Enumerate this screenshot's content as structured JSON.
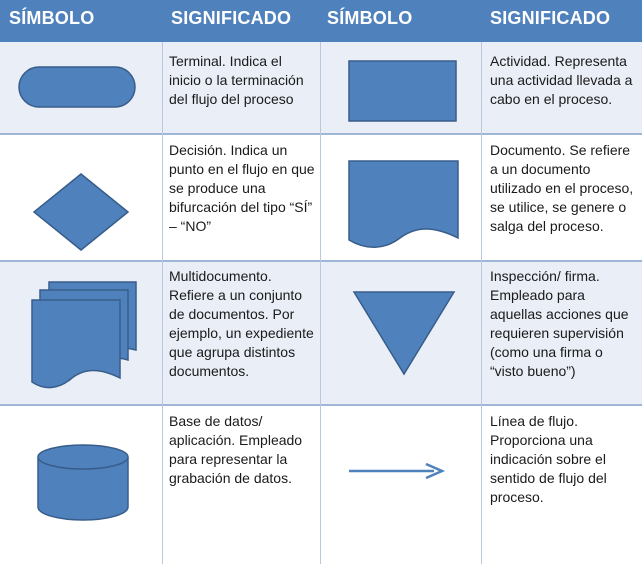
{
  "header": {
    "symbol_label_1": "SÍMBOLO",
    "meaning_label_1": "SIGNIFICADO",
    "symbol_label_2": "SÍMBOLO",
    "meaning_label_2": "SIGNIFICADO"
  },
  "rows": [
    {
      "left": {
        "symbol": "terminal-shape",
        "text": "Terminal. Indica el inicio o la terminación del flujo del proceso"
      },
      "right": {
        "symbol": "activity-rectangle-shape",
        "text": "Actividad. Representa una actividad llevada a cabo en el proceso."
      }
    },
    {
      "left": {
        "symbol": "decision-diamond-shape",
        "text": "Decisión. Indica un punto en el flujo en que se produce una bifurcación del tipo “SÍ” – “NO”"
      },
      "right": {
        "symbol": "document-shape",
        "text": "Documento. Se refiere a un documento utilizado en el proceso, se utilice, se genere o salga del proceso."
      }
    },
    {
      "left": {
        "symbol": "multidocument-shape",
        "text": "Multidocumento. Refiere a un conjunto de documentos. Por ejemplo, un expediente que agrupa distintos documentos."
      },
      "right": {
        "symbol": "inspection-triangle-shape",
        "text": "Inspección/ firma. Empleado para aquellas acciones que requieren supervisión (como una firma o “visto bueno”)"
      }
    },
    {
      "left": {
        "symbol": "database-cylinder-shape",
        "text": "Base de datos/ aplicación. Empleado para representar la grabación de datos."
      },
      "right": {
        "symbol": "flow-line-arrow-shape",
        "text": "Línea de flujo. Proporciona una indicación sobre el sentido de flujo del proceso."
      }
    }
  ],
  "colors": {
    "header_bg": "#4f81bd",
    "shape_fill": "#4f81bd",
    "shape_stroke": "#385d8a",
    "row_alt_bg": "#e9eef7",
    "grid_line": "#9fb6d6"
  }
}
